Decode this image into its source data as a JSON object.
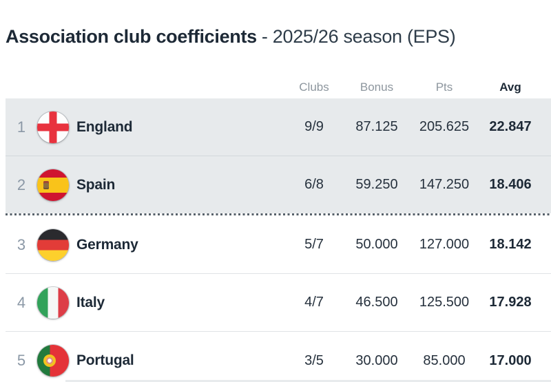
{
  "title": {
    "main": "Association club coefficients",
    "season": "- 2025/26 season (EPS)"
  },
  "table": {
    "headers": {
      "clubs": "Clubs",
      "bonus": "Bonus",
      "pts": "Pts",
      "avg": "Avg"
    },
    "sorted_column": "Avg",
    "rows": [
      {
        "rank": "1",
        "country": "England",
        "flag_icon": "england-flag-icon",
        "clubs": "9/9",
        "bonus": "87.125",
        "pts": "205.625",
        "avg": "22.847",
        "highlighted": true
      },
      {
        "rank": "2",
        "country": "Spain",
        "flag_icon": "spain-flag-icon",
        "clubs": "6/8",
        "bonus": "59.250",
        "pts": "147.250",
        "avg": "18.406",
        "highlighted": true
      },
      {
        "rank": "3",
        "country": "Germany",
        "flag_icon": "germany-flag-icon",
        "clubs": "5/7",
        "bonus": "50.000",
        "pts": "127.000",
        "avg": "18.142",
        "highlighted": false
      },
      {
        "rank": "4",
        "country": "Italy",
        "flag_icon": "italy-flag-icon",
        "clubs": "4/7",
        "bonus": "46.500",
        "pts": "125.500",
        "avg": "17.928",
        "highlighted": false
      },
      {
        "rank": "5",
        "country": "Portugal",
        "flag_icon": "portugal-flag-icon",
        "clubs": "3/5",
        "bonus": "30.000",
        "pts": "85.000",
        "avg": "17.000",
        "highlighted": false
      }
    ],
    "cutoff_line_after_rank": "2"
  },
  "colors": {
    "text_dark": "#1d2936",
    "text_gray": "#8d969e",
    "rank_gray": "#8b98a6",
    "row_highlight_bg": "#e7eaec",
    "row_divider": "#dfe3e6",
    "cutoff_dot": "#57616a"
  }
}
